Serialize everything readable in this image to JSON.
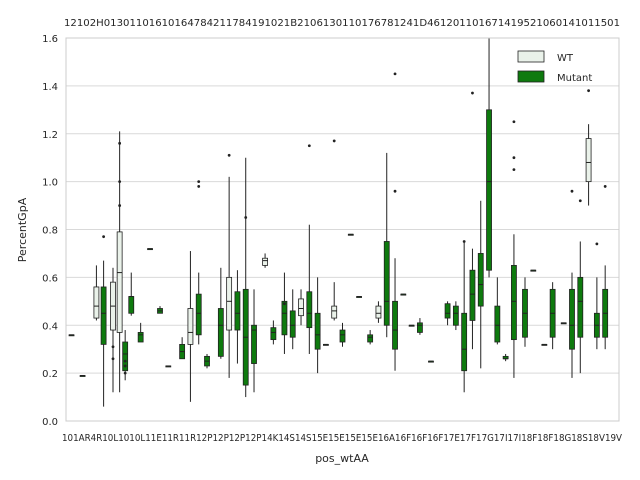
{
  "chart_data": {
    "type": "box",
    "xlabel": "pos_wtAA",
    "ylabel": "PercentGpA",
    "ylim": [
      0.0,
      1.6
    ],
    "yticks": [
      "0.0",
      "0.2",
      "0.4",
      "0.6",
      "0.8",
      "1.0",
      "1.2",
      "1.4",
      "1.6"
    ],
    "grid": true,
    "legend_position": "top-right",
    "bottom_labels_text": "101AR4R10L1010L11E11R11R12P12P12P12P14K14S14S15E15E15E15E16A16F16F16F17E17F17G17I17I18F18F18G18S18V19V",
    "top_labels_text": "12102H01301101610164784211784191021B2106130110176781241D461201101671419521060141011501",
    "series": [
      {
        "name": "WT",
        "color": "#eaf2ea"
      },
      {
        "name": "Mutant",
        "color": "#0e7a0e"
      }
    ],
    "groups": [
      {
        "x": 0.01,
        "box": [
          0.36,
          0.36,
          0.36,
          0.36,
          0.36
        ],
        "outliers": []
      },
      {
        "x": 0.03,
        "box": [
          0.19,
          0.19,
          0.19,
          0.19,
          0.19
        ],
        "outliers": []
      },
      {
        "x": 0.055,
        "box": [
          0.42,
          0.43,
          0.48,
          0.56,
          0.65
        ],
        "wt": true,
        "outliers": []
      },
      {
        "x": 0.068,
        "box": [
          0.06,
          0.32,
          0.45,
          0.56,
          0.67
        ],
        "outliers": [
          0.77
        ]
      },
      {
        "x": 0.085,
        "box": [
          0.12,
          0.38,
          0.48,
          0.58,
          0.64
        ],
        "wt": true,
        "outliers": [
          0.26,
          0.31
        ]
      },
      {
        "x": 0.097,
        "box": [
          0.12,
          0.37,
          0.62,
          0.79,
          1.21
        ],
        "wt": true,
        "outliers": [
          1.0,
          1.16,
          0.9
        ]
      },
      {
        "x": 0.107,
        "box": [
          0.17,
          0.21,
          0.28,
          0.33,
          0.38
        ],
        "outliers": [
          0.2,
          0.23,
          0.25
        ]
      },
      {
        "x": 0.118,
        "box": [
          0.44,
          0.45,
          0.52,
          0.52,
          0.62
        ],
        "outliers": []
      },
      {
        "x": 0.135,
        "box": [
          0.33,
          0.33,
          0.36,
          0.37,
          0.41
        ],
        "outliers": []
      },
      {
        "x": 0.152,
        "box": [
          0.72,
          0.72,
          0.72,
          0.72,
          0.72
        ],
        "outliers": []
      },
      {
        "x": 0.17,
        "box": [
          0.45,
          0.45,
          0.46,
          0.47,
          0.48
        ],
        "outliers": []
      },
      {
        "x": 0.185,
        "box": [
          0.23,
          0.23,
          0.23,
          0.23,
          0.23
        ],
        "outliers": []
      },
      {
        "x": 0.21,
        "box": [
          0.26,
          0.26,
          0.29,
          0.32,
          0.35
        ],
        "outliers": []
      },
      {
        "x": 0.225,
        "box": [
          0.08,
          0.32,
          0.37,
          0.47,
          0.71
        ],
        "wt": true,
        "outliers": []
      },
      {
        "x": 0.24,
        "box": [
          0.32,
          0.36,
          0.45,
          0.53,
          0.62
        ],
        "outliers": [
          0.98,
          1.0
        ]
      },
      {
        "x": 0.255,
        "box": [
          0.22,
          0.23,
          0.25,
          0.27,
          0.28
        ],
        "outliers": []
      },
      {
        "x": 0.28,
        "box": [
          0.26,
          0.27,
          0.4,
          0.47,
          0.64
        ],
        "outliers": []
      },
      {
        "x": 0.295,
        "box": [
          0.18,
          0.38,
          0.5,
          0.6,
          1.02
        ],
        "wt": true,
        "outliers": [
          1.11
        ]
      },
      {
        "x": 0.31,
        "box": [
          0.24,
          0.38,
          0.45,
          0.54,
          0.63
        ],
        "outliers": []
      },
      {
        "x": 0.325,
        "box": [
          0.1,
          0.15,
          0.35,
          0.55,
          1.1
        ],
        "outliers": [
          0.85
        ]
      },
      {
        "x": 0.34,
        "box": [
          0.12,
          0.24,
          0.38,
          0.4,
          0.55
        ],
        "outliers": []
      },
      {
        "x": 0.36,
        "box": [
          0.64,
          0.65,
          0.67,
          0.68,
          0.7
        ],
        "wt": true,
        "outliers": []
      },
      {
        "x": 0.375,
        "box": [
          0.32,
          0.34,
          0.37,
          0.39,
          0.42
        ],
        "outliers": []
      },
      {
        "x": 0.395,
        "box": [
          0.28,
          0.36,
          0.45,
          0.5,
          0.62
        ],
        "outliers": [
          0.49
        ]
      },
      {
        "x": 0.41,
        "box": [
          0.3,
          0.35,
          0.4,
          0.46,
          0.55
        ],
        "outliers": []
      },
      {
        "x": 0.425,
        "box": [
          0.4,
          0.44,
          0.47,
          0.51,
          0.55
        ],
        "wt": true,
        "outliers": []
      },
      {
        "x": 0.44,
        "box": [
          0.28,
          0.39,
          0.45,
          0.54,
          0.82
        ],
        "outliers": [
          1.15
        ]
      },
      {
        "x": 0.455,
        "box": [
          0.2,
          0.3,
          0.36,
          0.45,
          0.6
        ],
        "outliers": []
      },
      {
        "x": 0.47,
        "box": [
          0.32,
          0.32,
          0.32,
          0.32,
          0.32
        ],
        "outliers": []
      },
      {
        "x": 0.485,
        "box": [
          0.42,
          0.43,
          0.46,
          0.48,
          0.58
        ],
        "wt": true,
        "outliers": [
          1.17
        ]
      },
      {
        "x": 0.5,
        "box": [
          0.31,
          0.33,
          0.36,
          0.38,
          0.41
        ],
        "outliers": []
      },
      {
        "x": 0.515,
        "box": [
          0.78,
          0.78,
          0.78,
          0.78,
          0.78
        ],
        "outliers": []
      },
      {
        "x": 0.53,
        "box": [
          0.52,
          0.52,
          0.52,
          0.52,
          0.52
        ],
        "outliers": []
      },
      {
        "x": 0.55,
        "box": [
          0.32,
          0.33,
          0.35,
          0.36,
          0.38
        ],
        "outliers": []
      },
      {
        "x": 0.565,
        "box": [
          0.41,
          0.43,
          0.45,
          0.48,
          0.5
        ],
        "wt": true,
        "outliers": []
      },
      {
        "x": 0.58,
        "box": [
          0.35,
          0.4,
          0.5,
          0.75,
          1.12
        ],
        "outliers": []
      },
      {
        "x": 0.595,
        "box": [
          0.21,
          0.3,
          0.38,
          0.5,
          0.68
        ],
        "outliers": [
          1.45,
          0.96
        ]
      },
      {
        "x": 0.61,
        "box": [
          0.53,
          0.53,
          0.53,
          0.53,
          0.53
        ],
        "outliers": []
      },
      {
        "x": 0.625,
        "box": [
          0.4,
          0.4,
          0.4,
          0.4,
          0.4
        ],
        "outliers": []
      },
      {
        "x": 0.64,
        "box": [
          0.36,
          0.37,
          0.4,
          0.41,
          0.43
        ],
        "outliers": []
      },
      {
        "x": 0.66,
        "box": [
          0.25,
          0.25,
          0.25,
          0.25,
          0.25
        ],
        "outliers": []
      },
      {
        "x": 0.69,
        "box": [
          0.4,
          0.43,
          0.45,
          0.49,
          0.5
        ],
        "outliers": []
      },
      {
        "x": 0.705,
        "box": [
          0.38,
          0.4,
          0.45,
          0.48,
          0.5
        ],
        "outliers": []
      },
      {
        "x": 0.72,
        "box": [
          0.12,
          0.21,
          0.3,
          0.45,
          0.75
        ],
        "outliers": [
          0.75
        ]
      },
      {
        "x": 0.735,
        "box": [
          0.3,
          0.42,
          0.53,
          0.63,
          0.72
        ],
        "outliers": [
          1.37
        ]
      },
      {
        "x": 0.75,
        "box": [
          0.22,
          0.48,
          0.57,
          0.7,
          0.92
        ],
        "outliers": []
      },
      {
        "x": 0.765,
        "box": [
          0.6,
          0.63,
          1.0,
          1.3,
          1.6
        ],
        "outliers": []
      },
      {
        "x": 0.78,
        "box": [
          0.32,
          0.33,
          0.4,
          0.48,
          0.6
        ],
        "outliers": []
      },
      {
        "x": 0.795,
        "box": [
          0.25,
          0.26,
          0.26,
          0.27,
          0.28
        ],
        "outliers": []
      },
      {
        "x": 0.81,
        "box": [
          0.18,
          0.34,
          0.5,
          0.65,
          0.78
        ],
        "outliers": [
          1.25,
          1.1,
          1.05
        ]
      },
      {
        "x": 0.83,
        "box": [
          0.31,
          0.35,
          0.45,
          0.55,
          0.6
        ],
        "outliers": []
      },
      {
        "x": 0.845,
        "box": [
          0.63,
          0.63,
          0.63,
          0.63,
          0.63
        ],
        "outliers": []
      },
      {
        "x": 0.865,
        "box": [
          0.32,
          0.32,
          0.32,
          0.32,
          0.32
        ],
        "outliers": []
      },
      {
        "x": 0.88,
        "box": [
          0.3,
          0.35,
          0.45,
          0.55,
          0.58
        ],
        "outliers": []
      },
      {
        "x": 0.9,
        "box": [
          0.41,
          0.41,
          0.41,
          0.41,
          0.41
        ],
        "outliers": []
      },
      {
        "x": 0.915,
        "box": [
          0.18,
          0.3,
          0.4,
          0.55,
          0.62
        ],
        "outliers": [
          0.96
        ]
      },
      {
        "x": 0.93,
        "box": [
          0.2,
          0.35,
          0.5,
          0.6,
          0.75
        ],
        "outliers": [
          0.92
        ]
      },
      {
        "x": 0.945,
        "box": [
          0.9,
          1.0,
          1.08,
          1.18,
          1.24
        ],
        "wt": true,
        "outliers": [
          1.38
        ]
      },
      {
        "x": 0.96,
        "box": [
          0.3,
          0.35,
          0.4,
          0.45,
          0.6
        ],
        "outliers": [
          0.74
        ]
      },
      {
        "x": 0.975,
        "box": [
          0.3,
          0.35,
          0.45,
          0.55,
          0.65
        ],
        "outliers": [
          0.98
        ]
      }
    ]
  }
}
